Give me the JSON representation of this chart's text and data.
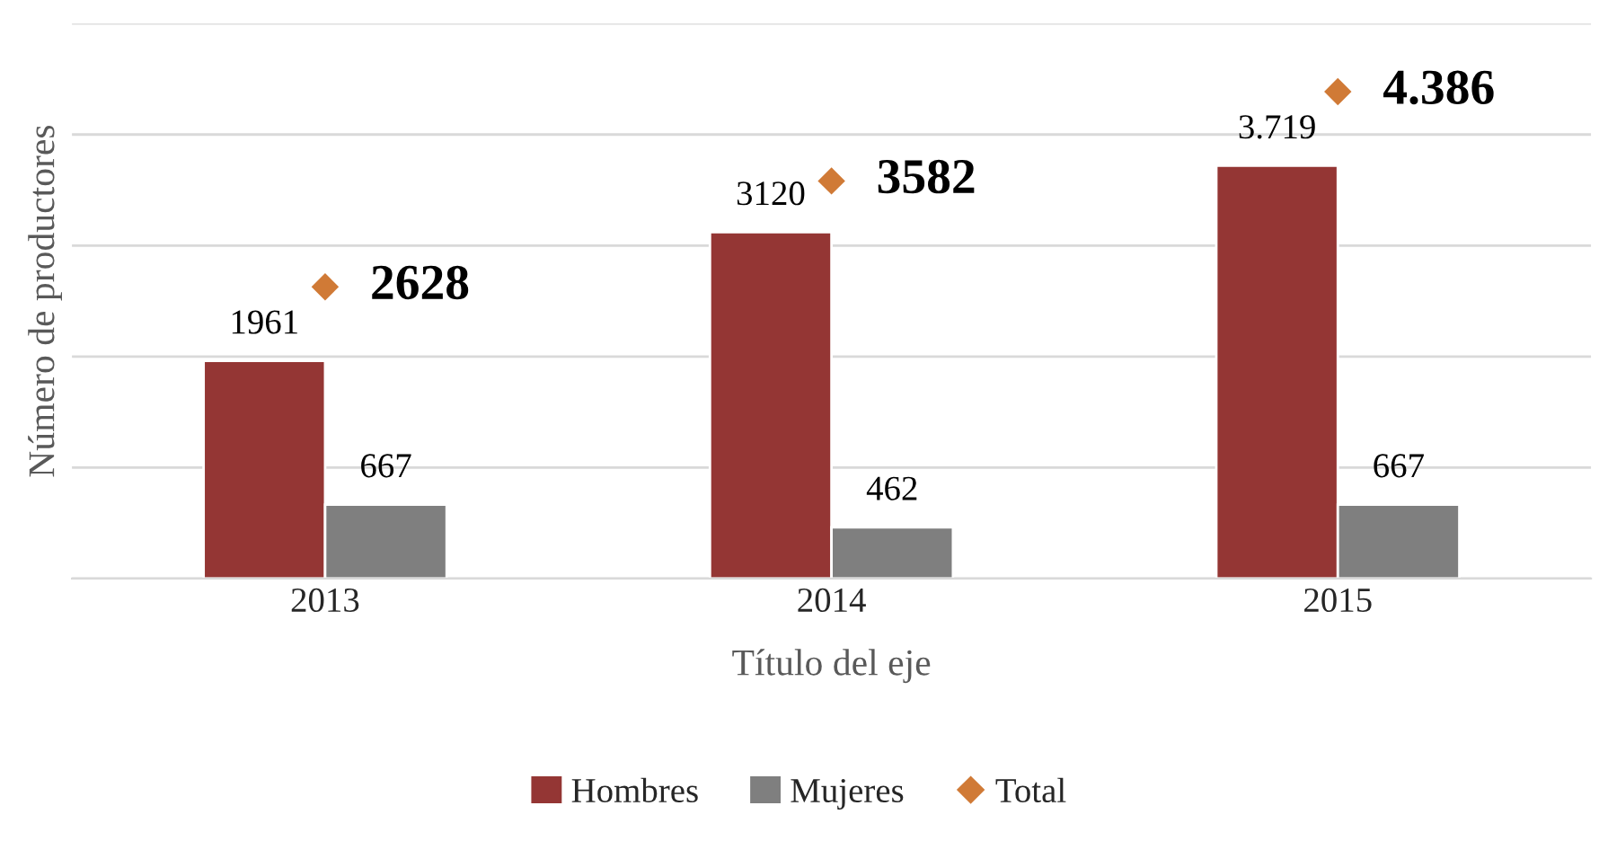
{
  "chart_data": {
    "type": "bar",
    "xlabel": "Título del eje",
    "ylabel": "Número de productores",
    "categories": [
      "2013",
      "2014",
      "2015"
    ],
    "series": [
      {
        "name": "Hombres",
        "color": "#943634",
        "values": [
          1961,
          3120,
          3719
        ],
        "value_labels": [
          "1961",
          "3120",
          "3.719"
        ]
      },
      {
        "name": "Mujeres",
        "color": "#7f7f7f",
        "values": [
          667,
          462,
          667
        ],
        "value_labels": [
          "667",
          "462",
          "667"
        ]
      },
      {
        "name": "Total",
        "type": "scatter",
        "marker": "diamond",
        "color": "#d07a36",
        "values": [
          2628,
          3582,
          4386
        ],
        "value_labels": [
          "2628",
          "3582",
          "4.386"
        ]
      }
    ],
    "ylim": [
      0,
      5000
    ],
    "yticks": [
      {
        "value": 0,
        "label": null
      },
      {
        "value": 1000,
        "label": null
      },
      {
        "value": 2000,
        "label": null
      },
      {
        "value": 3000,
        "label": null
      },
      {
        "value": 4000,
        "label": null
      },
      {
        "value": 5000,
        "label": null
      }
    ],
    "tick_labels": "x",
    "grid": "y",
    "legend": "bottom"
  }
}
